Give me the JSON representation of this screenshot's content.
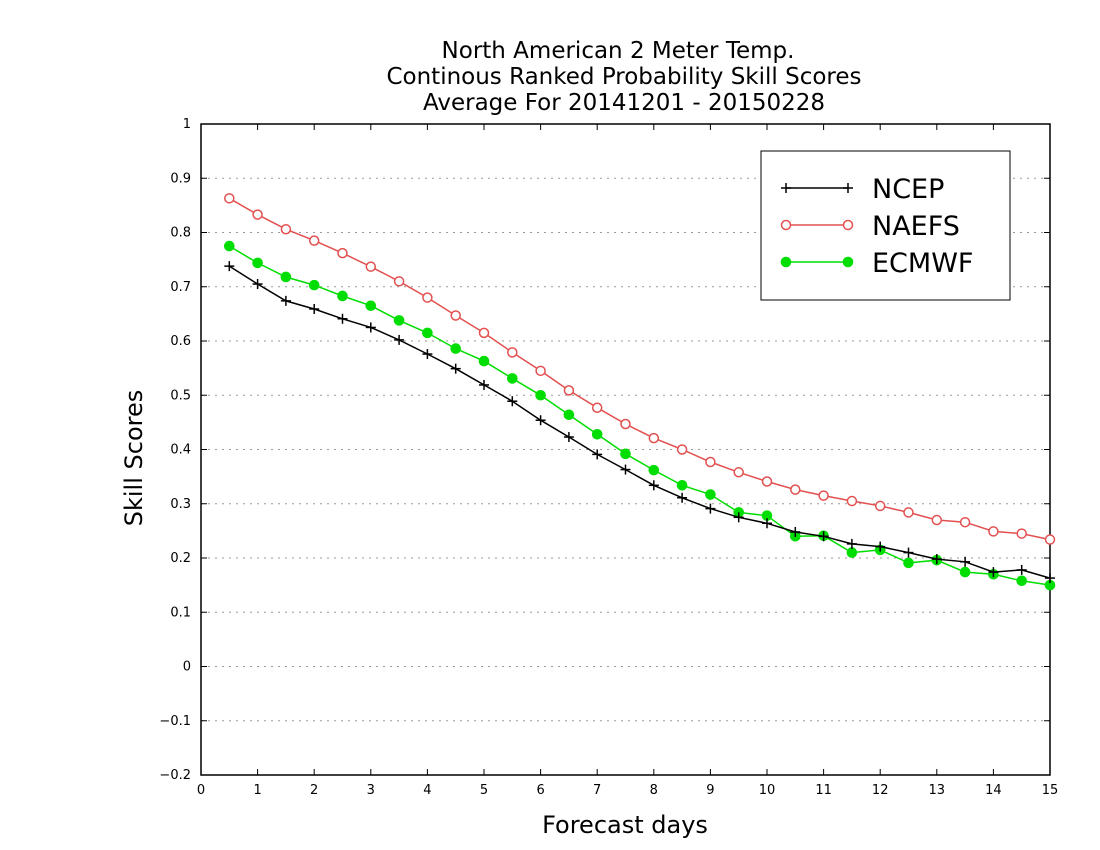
{
  "chart_data": {
    "type": "line",
    "title_lines": [
      "North American 2 Meter Temp.",
      "Continous Ranked Probability Skill Scores",
      "Average For 20141201 - 20150228"
    ],
    "xlabel": "Forecast days",
    "ylabel": "Skill Scores",
    "xlim": [
      0,
      15
    ],
    "ylim": [
      -0.2,
      1
    ],
    "xticks": [
      0,
      1,
      2,
      3,
      4,
      5,
      6,
      7,
      8,
      9,
      10,
      11,
      12,
      13,
      14,
      15
    ],
    "yticks": [
      -0.2,
      -0.1,
      0,
      0.1,
      0.2,
      0.3,
      0.4,
      0.5,
      0.6,
      0.7,
      0.8,
      0.9,
      1
    ],
    "ytick_labels": [
      "−0.2",
      "−0.1",
      "0",
      "0.1",
      "0.2",
      "0.3",
      "0.4",
      "0.5",
      "0.6",
      "0.7",
      "0.8",
      "0.9",
      "1"
    ],
    "grid": "horizontal dotted",
    "legend_position": "top-right",
    "x": [
      0.5,
      1,
      1.5,
      2,
      2.5,
      3,
      3.5,
      4,
      4.5,
      5,
      5.5,
      6,
      6.5,
      7,
      7.5,
      8,
      8.5,
      9,
      9.5,
      10,
      10.5,
      11,
      11.5,
      12,
      12.5,
      13,
      13.5,
      14,
      14.5,
      15
    ],
    "series": [
      {
        "name": "NCEP",
        "color": "#000000",
        "marker": "plus",
        "values": [
          0.738,
          0.705,
          0.674,
          0.659,
          0.641,
          0.625,
          0.602,
          0.576,
          0.549,
          0.519,
          0.489,
          0.454,
          0.423,
          0.391,
          0.363,
          0.334,
          0.311,
          0.291,
          0.275,
          0.264,
          0.248,
          0.24,
          0.226,
          0.221,
          0.21,
          0.198,
          0.193,
          0.174,
          0.178,
          0.163
        ]
      },
      {
        "name": "NAEFS",
        "color": "#e25050",
        "marker": "open-circle",
        "values": [
          0.863,
          0.833,
          0.806,
          0.785,
          0.762,
          0.737,
          0.71,
          0.68,
          0.647,
          0.615,
          0.579,
          0.545,
          0.509,
          0.477,
          0.447,
          0.421,
          0.4,
          0.377,
          0.358,
          0.341,
          0.326,
          0.315,
          0.305,
          0.296,
          0.284,
          0.27,
          0.266,
          0.249,
          0.245,
          0.234
        ]
      },
      {
        "name": "ECMWF",
        "color": "#00dd00",
        "marker": "filled-circle",
        "values": [
          0.775,
          0.744,
          0.718,
          0.703,
          0.683,
          0.665,
          0.638,
          0.615,
          0.586,
          0.563,
          0.531,
          0.5,
          0.464,
          0.428,
          0.392,
          0.362,
          0.334,
          0.317,
          0.284,
          0.278,
          0.24,
          0.241,
          0.21,
          0.215,
          0.191,
          0.196,
          0.174,
          0.17,
          0.158,
          0.15
        ]
      }
    ]
  }
}
